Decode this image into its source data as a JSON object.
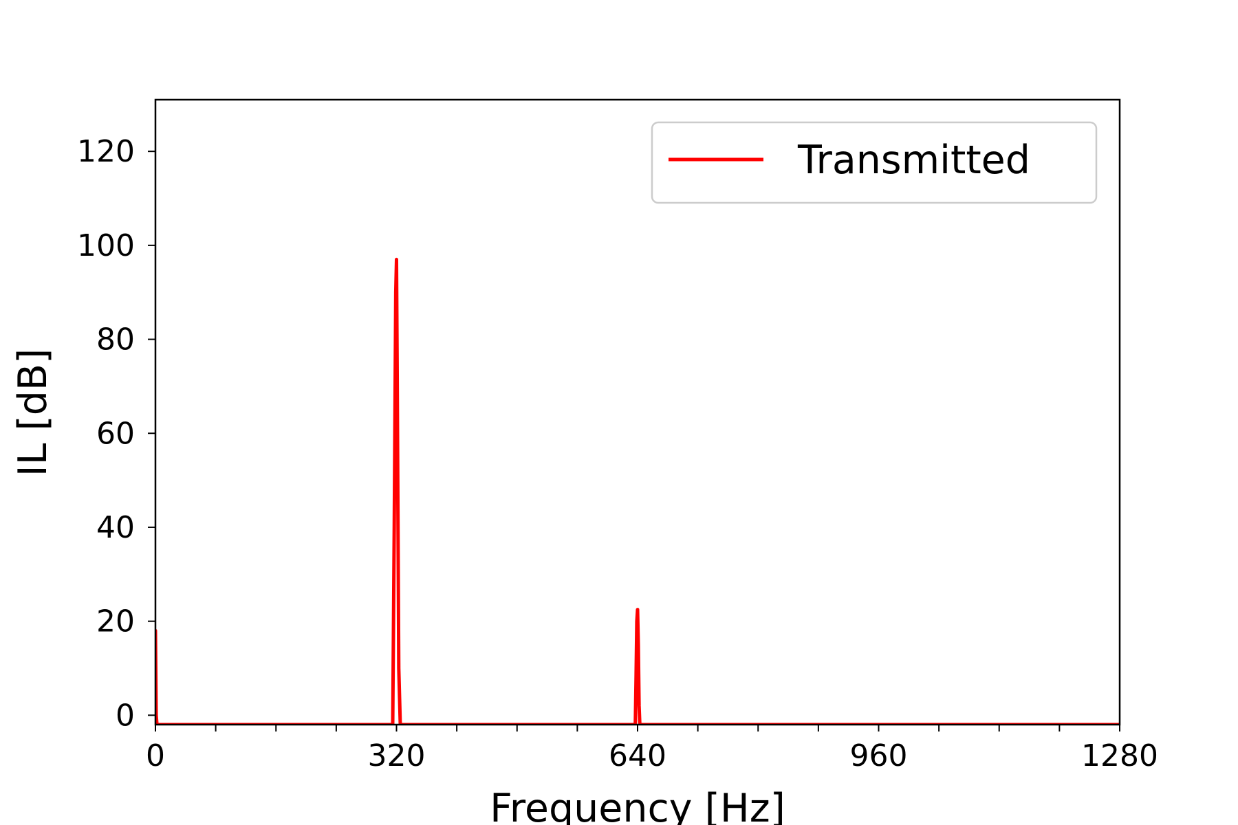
{
  "chart_data": {
    "type": "line",
    "title": "",
    "xlabel": "Frequency [Hz]",
    "ylabel": "IL [dB]",
    "xlim": [
      0,
      1280
    ],
    "ylim": [
      -2,
      131
    ],
    "xticks": [
      0,
      320,
      640,
      960,
      1280
    ],
    "xtick_labels": [
      "0",
      "320",
      "640",
      "960",
      "1280"
    ],
    "xminor_step": 80,
    "yticks": [
      0,
      20,
      40,
      60,
      80,
      100,
      120
    ],
    "ytick_labels": [
      "0",
      "20",
      "40",
      "60",
      "80",
      "100",
      "120"
    ],
    "grid": false,
    "legend_position": "top-right",
    "colors": {
      "series": "#ff0000",
      "axes": "#000000",
      "legend_border": "#cccccc"
    },
    "series": [
      {
        "name": "Transmitted",
        "x": [
          0,
          1,
          2,
          3,
          315,
          317,
          319,
          320,
          321,
          323,
          325,
          637,
          638,
          639,
          640,
          641,
          642,
          643,
          1280
        ],
        "y": [
          18,
          0,
          -2,
          -2,
          -2,
          40,
          90,
          97,
          70,
          10,
          -2,
          -2,
          8,
          20,
          22.5,
          15,
          2,
          -2,
          -2
        ]
      }
    ]
  }
}
